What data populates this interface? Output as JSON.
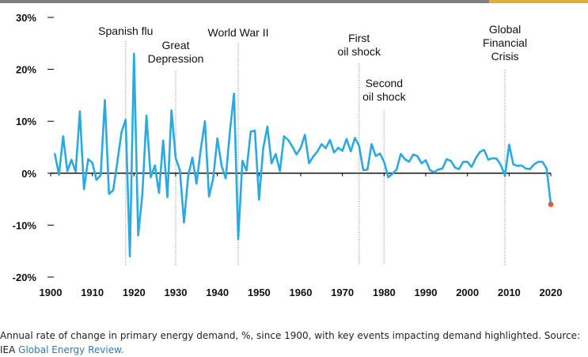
{
  "chart_data": {
    "type": "line",
    "title": "",
    "xlabel": "",
    "ylabel": "",
    "xlim": [
      1900,
      2020
    ],
    "ylim": [
      -20,
      30
    ],
    "x_ticks": [
      "1900",
      "1910",
      "1920",
      "1930",
      "1940",
      "1950",
      "1960",
      "1970",
      "1980",
      "1990",
      "2000",
      "2010",
      "2020"
    ],
    "y_ticks": [
      {
        "value": 30,
        "label": "30%"
      },
      {
        "value": 20,
        "label": "20%"
      },
      {
        "value": 10,
        "label": "10%"
      },
      {
        "value": 0,
        "label": "0%"
      },
      {
        "value": -10,
        "label": "-10%"
      },
      {
        "value": -20,
        "label": "-20%"
      }
    ],
    "grid": false,
    "series": [
      {
        "color": "#29aae2",
        "x": [
          1901,
          1902,
          1903,
          1904,
          1905,
          1906,
          1907,
          1908,
          1909,
          1910,
          1911,
          1912,
          1913,
          1914,
          1915,
          1916,
          1917,
          1918,
          1919,
          1920,
          1921,
          1922,
          1923,
          1924,
          1925,
          1926,
          1927,
          1928,
          1929,
          1930,
          1931,
          1932,
          1933,
          1934,
          1935,
          1936,
          1937,
          1938,
          1939,
          1940,
          1941,
          1942,
          1943,
          1944,
          1945,
          1946,
          1947,
          1948,
          1949,
          1950,
          1951,
          1952,
          1953,
          1954,
          1955,
          1956,
          1957,
          1958,
          1959,
          1960,
          1961,
          1962,
          1963,
          1964,
          1965,
          1966,
          1967,
          1968,
          1969,
          1970,
          1971,
          1972,
          1973,
          1974,
          1975,
          1976,
          1977,
          1978,
          1979,
          1980,
          1981,
          1982,
          1983,
          1984,
          1985,
          1986,
          1987,
          1988,
          1989,
          1990,
          1991,
          1992,
          1993,
          1994,
          1995,
          1996,
          1997,
          1998,
          1999,
          2000,
          2001,
          2002,
          2003,
          2004,
          2005,
          2006,
          2007,
          2008,
          2009,
          2010,
          2011,
          2012,
          2013,
          2014,
          2015,
          2016,
          2017,
          2018,
          2019
        ],
        "y": [
          3.7,
          -0.3,
          7.1,
          0.4,
          2.6,
          0.3,
          11.9,
          -3.1,
          2.7,
          2.0,
          -1.3,
          -0.4,
          14.1,
          -4.0,
          -3.3,
          2.2,
          7.9,
          10.3,
          -16.0,
          23.0,
          -12.0,
          -4.0,
          11.1,
          -0.8,
          1.5,
          -3.8,
          6.3,
          -4.6,
          12.1,
          2.9,
          0.6,
          -9.5,
          -0.5,
          3.0,
          -2.0,
          4.5,
          10.0,
          -4.5,
          -1.0,
          6.7,
          1.5,
          -1.0,
          8.0,
          15.3,
          -12.7,
          2.4,
          0.5,
          8.0,
          8.2,
          -5.1,
          4.8,
          9.0,
          1.9,
          3.7,
          0.4,
          7.1,
          6.4,
          5.1,
          3.6,
          4.9,
          7.4,
          1.9,
          3.2,
          4.2,
          5.6,
          4.8,
          6.4,
          4.0,
          4.9,
          4.3,
          6.6,
          4.2,
          6.8,
          5.3,
          0.6,
          0.7,
          5.6,
          3.3,
          3.8,
          2.2,
          -0.8,
          -0.1,
          0.7,
          3.7,
          2.7,
          2.2,
          3.6,
          3.3,
          1.9,
          2.5,
          0.6,
          0.2,
          0.7,
          0.9,
          2.7,
          2.4,
          1.1,
          0.8,
          2.2,
          2.2,
          1.2,
          2.9,
          4.1,
          4.5,
          2.6,
          2.9,
          2.8,
          1.6,
          -0.5,
          5.5,
          1.7,
          1.4,
          1.5,
          0.9,
          0.8,
          1.7,
          2.2,
          2.2,
          0.9
        ]
      },
      {
        "color": "#e8592c",
        "x": [
          2020
        ],
        "y": [
          -6.0
        ]
      }
    ],
    "events": [
      {
        "year": 1918,
        "lines": [
          "Spanish flu"
        ]
      },
      {
        "year": 1930,
        "lines": [
          "Great",
          "Depression"
        ]
      },
      {
        "year": 1945,
        "lines": [
          "World War II"
        ]
      },
      {
        "year": 1974,
        "lines": [
          "First",
          "oil shock"
        ]
      },
      {
        "year": 1980,
        "lines": [
          "Second",
          "oil shock"
        ]
      },
      {
        "year": 2009,
        "lines": [
          "Global",
          "Financial",
          "Crisis"
        ]
      }
    ]
  },
  "caption": {
    "text": "Annual rate of change in primary energy demand, %, since 1900, with key events impacting demand highlighted. Source: IEA",
    "link_text": "Global Energy Review."
  },
  "colors": {
    "top_rule_dark": "#7f7f7f",
    "top_rule_accent": "#e2a93b",
    "link": "#2b7bb9",
    "event_line": "#bfbfbf"
  }
}
